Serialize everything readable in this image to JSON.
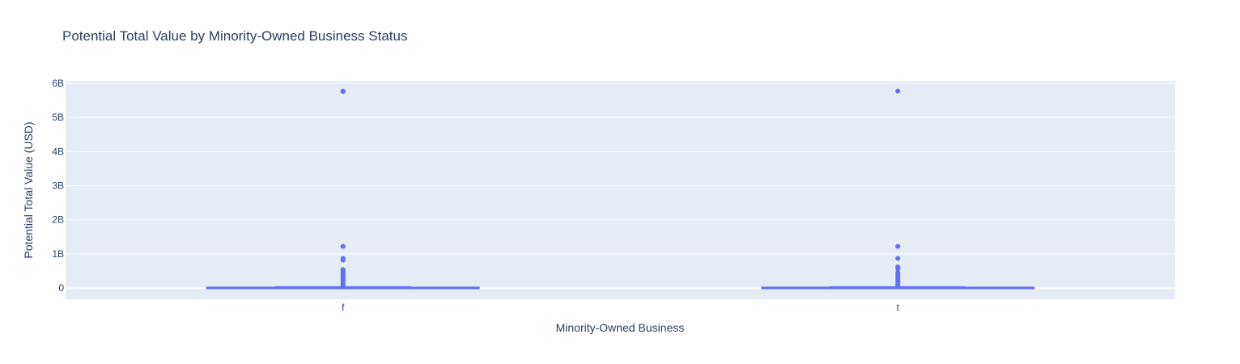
{
  "chart_data": {
    "type": "box",
    "title": "Potential Total Value by Minority-Owned Business Status",
    "xlabel": "Minority-Owned Business",
    "ylabel": "Potential Total Value (USD)",
    "categories": [
      "f",
      "t"
    ],
    "ylim": [
      -330000000,
      6070000000
    ],
    "yticks": [
      {
        "value": 0,
        "label": "0"
      },
      {
        "value": 1000000000,
        "label": "1B"
      },
      {
        "value": 2000000000,
        "label": "2B"
      },
      {
        "value": 3000000000,
        "label": "3B"
      },
      {
        "value": 4000000000,
        "label": "4B"
      },
      {
        "value": 5000000000,
        "label": "5B"
      },
      {
        "value": 6000000000,
        "label": "6B"
      }
    ],
    "grid": true,
    "colors": {
      "box": "#636efa",
      "plot_bg": "#e5ecf6",
      "grid": "#ffffff",
      "text": "#2a3f5f"
    },
    "boxes": [
      {
        "category": "f",
        "q1": 0,
        "median": 2000000,
        "q3": 15000000,
        "lowerfence": 0,
        "upperfence": 30000000,
        "outliers": [
          5770000000,
          5760000000,
          1220000000,
          870000000,
          820000000,
          540000000,
          500000000,
          460000000,
          420000000,
          380000000,
          340000000,
          300000000,
          260000000,
          220000000,
          180000000,
          140000000,
          100000000,
          70000000,
          45000000
        ]
      },
      {
        "category": "t",
        "q1": 0,
        "median": 2000000,
        "q3": 15000000,
        "lowerfence": 0,
        "upperfence": 30000000,
        "outliers": [
          5770000000,
          1220000000,
          870000000,
          620000000,
          560000000,
          450000000,
          400000000,
          350000000,
          300000000,
          250000000,
          200000000,
          150000000,
          100000000,
          60000000,
          40000000
        ]
      }
    ]
  }
}
